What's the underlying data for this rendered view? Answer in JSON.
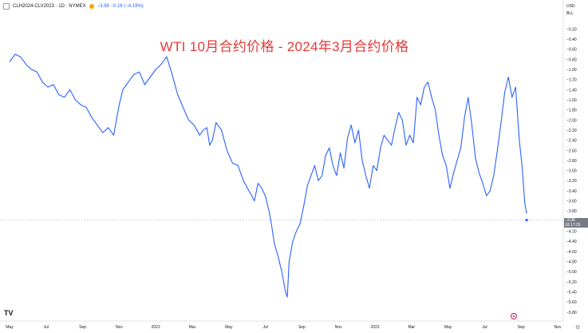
{
  "header": {
    "symbol": "CLH2024-CLV2023 · 1D · NYMEX",
    "change": "−3.98  −0.16 (−4.19%)"
  },
  "y_unit": [
    "USD",
    "BLL"
  ],
  "price_badge": {
    "value": "−3.98",
    "countdown": "18:17:26"
  },
  "logo_text": "TV",
  "chart_data": {
    "type": "line",
    "title": "WTI 10月合约价格 - 2024年3月合约价格",
    "y_unit": "USD/BLL",
    "ylim": [
      -5.85,
      -0.1
    ],
    "yticks": [
      -0.2,
      -0.4,
      -0.6,
      -0.8,
      -1.0,
      -1.2,
      -1.4,
      -1.6,
      -1.8,
      -2.0,
      -2.2,
      -2.4,
      -2.6,
      -2.8,
      -3.0,
      -3.2,
      -3.4,
      -3.6,
      -3.8,
      -4.0,
      -4.2,
      -4.4,
      -4.6,
      -4.8,
      -5.0,
      -5.2,
      -5.4,
      -5.6,
      -5.8
    ],
    "x_labels": [
      {
        "label": "May",
        "month": 0
      },
      {
        "label": "Jul",
        "month": 2
      },
      {
        "label": "Sep",
        "month": 4
      },
      {
        "label": "Nov",
        "month": 6
      },
      {
        "label": "2022",
        "month": 8
      },
      {
        "label": "Mar",
        "month": 10
      },
      {
        "label": "May",
        "month": 12
      },
      {
        "label": "Jul",
        "month": 14
      },
      {
        "label": "Sep",
        "month": 16
      },
      {
        "label": "Nov",
        "month": 18
      },
      {
        "label": "2023",
        "month": 20
      },
      {
        "label": "Mar",
        "month": 22
      },
      {
        "label": "May",
        "month": 24
      },
      {
        "label": "Jul",
        "month": 26
      },
      {
        "label": "Sep",
        "month": 28
      },
      {
        "label": "Nov",
        "month": 30
      }
    ],
    "series": [
      {
        "color": "#2962ff",
        "x_month": [
          0,
          0.3,
          0.6,
          0.9,
          1.2,
          1.5,
          1.8,
          2.1,
          2.4,
          2.7,
          3.0,
          3.3,
          3.6,
          3.9,
          4.2,
          4.5,
          4.8,
          5.1,
          5.4,
          5.7,
          6.0,
          6.2,
          6.5,
          6.8,
          7.1,
          7.4,
          7.7,
          8.0,
          8.3,
          8.6,
          8.9,
          9.2,
          9.5,
          9.8,
          10.1,
          10.4,
          10.6,
          10.8,
          10.95,
          11.1,
          11.3,
          11.6,
          11.9,
          12.2,
          12.5,
          12.8,
          13.1,
          13.4,
          13.6,
          13.8,
          14.0,
          14.2,
          14.35,
          14.5,
          14.7,
          14.9,
          15.1,
          15.3,
          15.5,
          15.7,
          15.9,
          16.1,
          16.3,
          16.5,
          16.7,
          16.9,
          17.1,
          17.3,
          17.5,
          17.7,
          17.9,
          18.1,
          18.3,
          18.5,
          18.7,
          18.9,
          19.1,
          19.3,
          19.5,
          19.7,
          19.9,
          20.1,
          20.3,
          20.5,
          20.7,
          20.9,
          21.1,
          21.3,
          21.5,
          21.7,
          21.9,
          22.1,
          22.3,
          22.5,
          22.7,
          22.9,
          23.1,
          23.3,
          23.5,
          23.7,
          23.9,
          24.1,
          24.3,
          24.5,
          24.7,
          24.9,
          25.1,
          25.3,
          25.5,
          25.7,
          25.9,
          26.1,
          26.3,
          26.5,
          26.7,
          26.9,
          27.1,
          27.3,
          27.5,
          27.7,
          27.9,
          28.05,
          28.2,
          28.3
        ],
        "y": [
          -0.85,
          -0.7,
          -0.75,
          -0.9,
          -1.0,
          -1.05,
          -1.25,
          -1.35,
          -1.3,
          -1.5,
          -1.55,
          -1.4,
          -1.6,
          -1.7,
          -1.75,
          -1.95,
          -2.1,
          -2.25,
          -2.15,
          -2.3,
          -1.7,
          -1.4,
          -1.25,
          -1.1,
          -1.05,
          -1.3,
          -1.15,
          -1.0,
          -0.9,
          -0.75,
          -1.1,
          -1.5,
          -1.75,
          -2.0,
          -2.1,
          -2.3,
          -2.2,
          -2.15,
          -2.5,
          -2.4,
          -2.05,
          -2.2,
          -2.6,
          -2.85,
          -2.9,
          -3.2,
          -3.4,
          -3.6,
          -3.25,
          -3.35,
          -3.5,
          -3.8,
          -4.1,
          -4.45,
          -4.7,
          -5.0,
          -5.4,
          -4.8,
          -4.4,
          -4.2,
          -4.05,
          -3.7,
          -3.3,
          -3.1,
          -2.9,
          -3.2,
          -3.1,
          -2.7,
          -2.55,
          -2.9,
          -3.1,
          -2.65,
          -2.95,
          -2.35,
          -2.1,
          -2.45,
          -2.2,
          -2.8,
          -3.1,
          -3.35,
          -2.9,
          -3.0,
          -2.55,
          -2.3,
          -2.4,
          -2.5,
          -2.15,
          -1.85,
          -2.0,
          -2.5,
          -2.3,
          -2.45,
          -1.55,
          -1.7,
          -1.35,
          -1.25,
          -1.55,
          -1.8,
          -2.3,
          -2.7,
          -2.9,
          -3.35,
          -3.05,
          -2.8,
          -2.55,
          -1.95,
          -1.55,
          -2.1,
          -2.75,
          -3.05,
          -3.25,
          -3.5,
          -3.4,
          -3.1,
          -2.6,
          -2.05,
          -1.45,
          -1.15,
          -1.55,
          -1.35,
          -2.4,
          -2.9,
          -3.65,
          -3.85
        ],
        "labels": [],
        "min_point": {
          "x_month": 15.2,
          "y": -5.5
        }
      }
    ],
    "current_value": -3.98
  }
}
